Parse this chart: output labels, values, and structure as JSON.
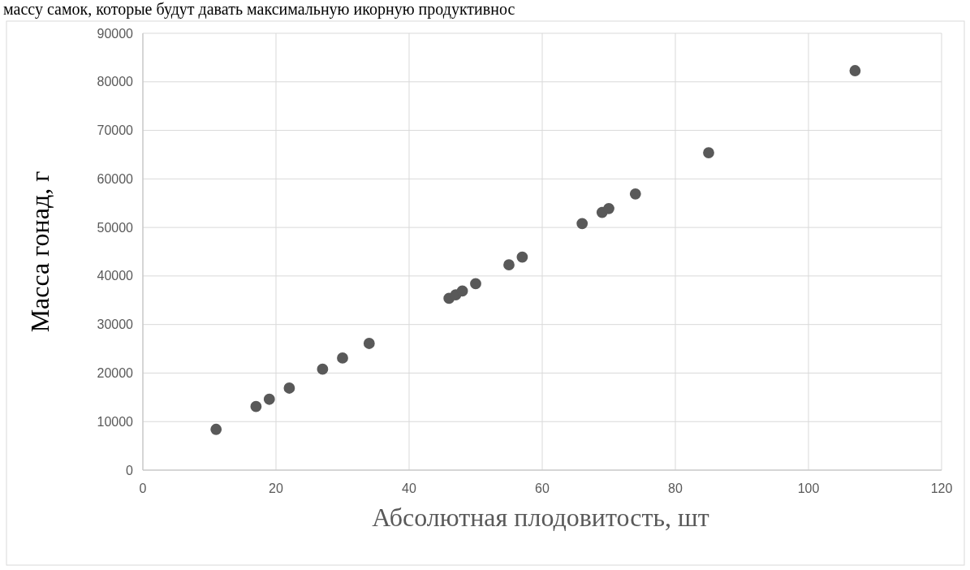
{
  "chart_data": {
    "type": "scatter",
    "x": [
      11,
      17,
      19,
      22,
      27,
      30,
      34,
      46,
      47,
      48,
      50,
      55,
      57,
      66,
      69,
      70,
      74,
      85,
      107
    ],
    "values": [
      8400,
      13100,
      14600,
      16900,
      20800,
      23100,
      26100,
      35400,
      36100,
      36900,
      38400,
      42300,
      43900,
      50800,
      53100,
      53900,
      56900,
      65400,
      82300
    ],
    "color": "#595959",
    "marker": "circle",
    "grid": true,
    "xlim": [
      0,
      120
    ],
    "xticks": [
      0,
      20,
      40,
      60,
      80,
      100,
      120
    ],
    "ylim": [
      0,
      90000
    ],
    "yticks": [
      0,
      10000,
      20000,
      30000,
      40000,
      50000,
      60000,
      70000,
      80000,
      90000
    ],
    "xlabel": "Абсолютная плодовитость, шт",
    "ylabel": "Масса гонад, г",
    "annotations": [
      "массу самок, которые будут давать максимальную икорную продуктивнос"
    ]
  }
}
